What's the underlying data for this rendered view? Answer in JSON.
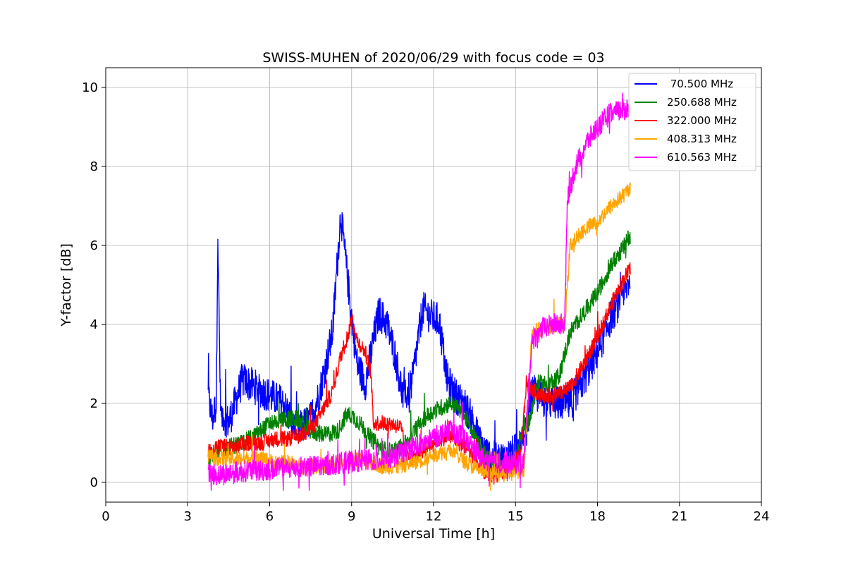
{
  "chart_data": {
    "type": "line",
    "title": "SWISS-MUHEN of 2020/06/29 with focus code = 03",
    "xlabel": "Universal Time [h]",
    "ylabel": "Y-factor [dB]",
    "xlim": [
      0,
      24
    ],
    "ylim": [
      -0.5,
      10.5
    ],
    "xticks": [
      0,
      3,
      6,
      9,
      12,
      15,
      18,
      21,
      24
    ],
    "yticks": [
      0,
      2,
      4,
      6,
      8,
      10
    ],
    "grid": true,
    "legend_position": "top-right",
    "series": [
      {
        "name": " 70.500 MHz",
        "color": "#0000ff",
        "noise": 0.45,
        "x": [
          3.75,
          3.9,
          4.05,
          4.1,
          4.2,
          4.5,
          5.0,
          5.5,
          6.0,
          6.5,
          7.0,
          7.5,
          7.8,
          8.0,
          8.3,
          8.6,
          8.8,
          9.0,
          9.2,
          9.5,
          9.8,
          10.0,
          10.3,
          10.6,
          10.9,
          11.2,
          11.6,
          11.9,
          12.2,
          12.5,
          12.8,
          13.1,
          13.4,
          13.7,
          14.0,
          14.3,
          14.6,
          15.0,
          15.3,
          15.6,
          16.0,
          16.5,
          17.0,
          17.5,
          18.0,
          18.5,
          19.0,
          19.2
        ],
        "y": [
          2.2,
          1.6,
          2.0,
          6.5,
          1.8,
          1.5,
          2.6,
          2.4,
          2.2,
          2.0,
          1.3,
          1.6,
          2.2,
          2.8,
          3.8,
          6.8,
          5.5,
          4.2,
          3.0,
          2.5,
          3.6,
          4.3,
          4.0,
          3.2,
          2.1,
          2.5,
          4.4,
          4.2,
          4.1,
          2.6,
          2.2,
          2.0,
          1.6,
          1.0,
          0.7,
          0.6,
          0.6,
          0.8,
          0.9,
          2.3,
          2.1,
          2.0,
          2.0,
          2.6,
          3.3,
          4.2,
          4.8,
          5.2
        ]
      },
      {
        "name": "250.688 MHz",
        "color": "#008000",
        "noise": 0.22,
        "x": [
          3.75,
          4.0,
          4.5,
          5.0,
          5.5,
          6.0,
          6.5,
          7.0,
          7.5,
          8.0,
          8.5,
          8.8,
          9.0,
          9.3,
          9.6,
          10.0,
          10.3,
          10.6,
          11.0,
          11.3,
          11.6,
          12.0,
          12.3,
          12.6,
          12.9,
          13.2,
          13.5,
          13.8,
          14.1,
          14.4,
          14.7,
          15.0,
          15.3,
          15.5,
          15.8,
          16.2,
          16.6,
          17.0,
          17.5,
          18.0,
          18.5,
          19.0,
          19.2
        ],
        "y": [
          0.6,
          0.8,
          0.9,
          1.0,
          1.2,
          1.5,
          1.6,
          1.6,
          1.3,
          1.2,
          1.3,
          1.7,
          1.7,
          1.5,
          1.2,
          0.9,
          0.8,
          0.8,
          1.0,
          1.3,
          1.6,
          1.8,
          1.9,
          2.0,
          1.9,
          1.6,
          1.2,
          0.8,
          0.5,
          0.4,
          0.4,
          0.5,
          1.5,
          1.5,
          2.5,
          2.5,
          2.7,
          3.8,
          4.3,
          4.8,
          5.5,
          6.0,
          6.3
        ]
      },
      {
        "name": "322.000 MHz",
        "color": "#ff0000",
        "noise": 0.2,
        "x": [
          3.75,
          4.2,
          4.7,
          5.2,
          5.7,
          6.2,
          6.7,
          7.2,
          7.7,
          8.0,
          8.3,
          8.6,
          8.9,
          9.0,
          9.2,
          9.5,
          9.7,
          9.8,
          10.0,
          10.4,
          10.8,
          11.0,
          11.3,
          11.6,
          12.0,
          12.3,
          12.6,
          12.9,
          13.2,
          13.5,
          13.8,
          14.1,
          14.4,
          14.7,
          15.0,
          15.2,
          15.4,
          15.7,
          16.0,
          16.5,
          17.0,
          17.5,
          18.0,
          18.5,
          19.0,
          19.2
        ],
        "y": [
          0.8,
          0.9,
          0.9,
          1.0,
          1.0,
          1.1,
          1.1,
          1.2,
          1.5,
          1.9,
          2.3,
          3.2,
          3.8,
          4.2,
          3.6,
          3.3,
          2.8,
          1.5,
          1.5,
          1.5,
          1.4,
          0.7,
          0.6,
          0.8,
          1.0,
          1.1,
          1.2,
          1.0,
          0.9,
          0.6,
          0.3,
          0.2,
          0.2,
          0.3,
          0.5,
          0.8,
          2.5,
          2.3,
          2.2,
          2.2,
          2.4,
          3.0,
          3.7,
          4.5,
          5.2,
          5.4
        ]
      },
      {
        "name": "408.313 MHz",
        "color": "#ffa500",
        "noise": 0.2,
        "x": [
          3.75,
          4.2,
          4.7,
          5.2,
          5.7,
          6.2,
          6.7,
          7.2,
          7.7,
          8.2,
          8.7,
          9.2,
          9.7,
          10.2,
          10.7,
          11.2,
          11.7,
          12.2,
          12.7,
          13.2,
          13.7,
          14.2,
          14.7,
          15.0,
          15.3,
          15.6,
          16.0,
          16.4,
          16.8,
          17.0,
          17.5,
          18.0,
          18.5,
          19.0,
          19.2
        ],
        "y": [
          0.7,
          0.6,
          0.6,
          0.6,
          0.6,
          0.5,
          0.5,
          0.4,
          0.4,
          0.45,
          0.55,
          0.6,
          0.5,
          0.4,
          0.4,
          0.5,
          0.6,
          0.75,
          0.8,
          0.5,
          0.3,
          0.2,
          0.2,
          0.25,
          0.3,
          3.8,
          3.9,
          4.0,
          4.0,
          6.0,
          6.4,
          6.6,
          7.0,
          7.3,
          7.5
        ]
      },
      {
        "name": "610.563 MHz",
        "color": "#ff00ff",
        "noise": 0.28,
        "x": [
          3.75,
          4.2,
          4.7,
          5.2,
          5.7,
          6.2,
          6.7,
          7.2,
          7.7,
          8.2,
          8.7,
          9.2,
          9.7,
          10.2,
          10.7,
          11.2,
          11.7,
          12.2,
          12.6,
          13.0,
          13.4,
          13.8,
          14.2,
          14.6,
          15.0,
          15.3,
          15.6,
          16.0,
          16.4,
          16.8,
          16.9,
          17.2,
          17.6,
          18.0,
          18.4,
          18.8,
          19.2
        ],
        "y": [
          0.2,
          0.2,
          0.25,
          0.3,
          0.3,
          0.35,
          0.35,
          0.4,
          0.4,
          0.45,
          0.5,
          0.55,
          0.55,
          0.6,
          0.7,
          0.9,
          1.0,
          1.2,
          1.35,
          1.2,
          0.9,
          0.6,
          0.5,
          0.5,
          0.5,
          0.5,
          3.6,
          3.9,
          4.0,
          4.0,
          7.2,
          8.0,
          8.6,
          9.0,
          9.3,
          9.4,
          9.5
        ]
      }
    ]
  }
}
